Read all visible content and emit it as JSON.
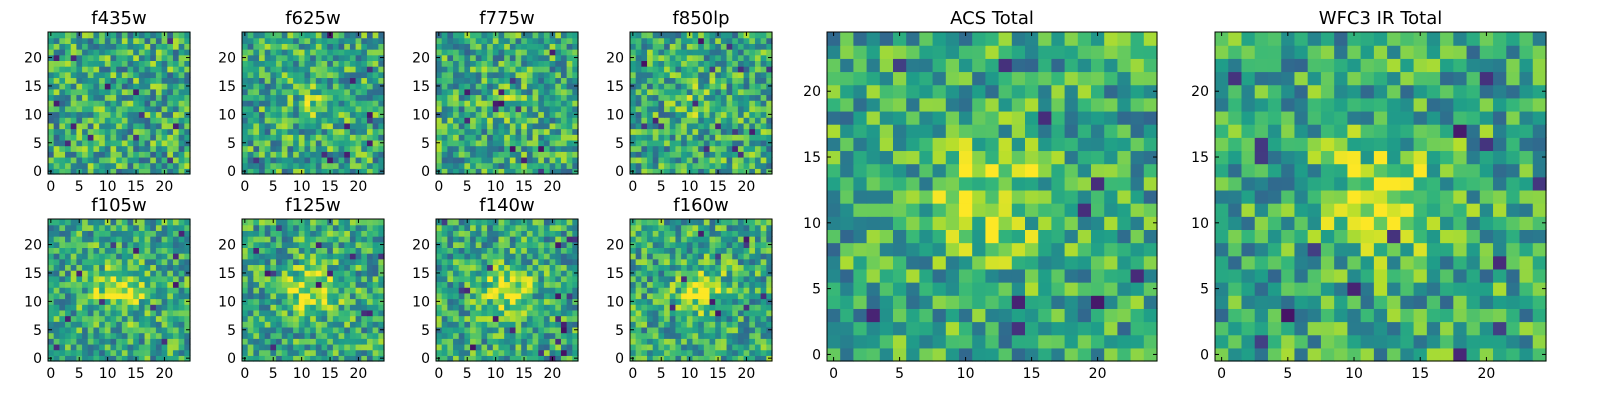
{
  "chart_data": [
    {
      "type": "heatmap",
      "title": "f435w",
      "colormap": "viridis",
      "grid_size": 25,
      "xlim": [
        -0.5,
        24.5
      ],
      "ylim": [
        -0.5,
        24.5
      ],
      "xticks": [
        0,
        5,
        10,
        15,
        20
      ],
      "yticks": [
        0,
        5,
        10,
        15,
        20
      ],
      "central_source": "none"
    },
    {
      "type": "heatmap",
      "title": "f625w",
      "colormap": "viridis",
      "grid_size": 25,
      "xlim": [
        -0.5,
        24.5
      ],
      "ylim": [
        -0.5,
        24.5
      ],
      "xticks": [
        0,
        5,
        10,
        15,
        20
      ],
      "yticks": [
        0,
        5,
        10,
        15,
        20
      ],
      "central_source": "faint"
    },
    {
      "type": "heatmap",
      "title": "f775w",
      "colormap": "viridis",
      "grid_size": 25,
      "xlim": [
        -0.5,
        24.5
      ],
      "ylim": [
        -0.5,
        24.5
      ],
      "xticks": [
        0,
        5,
        10,
        15,
        20
      ],
      "yticks": [
        0,
        5,
        10,
        15,
        20
      ],
      "central_source": "faint"
    },
    {
      "type": "heatmap",
      "title": "f850lp",
      "colormap": "viridis",
      "grid_size": 25,
      "xlim": [
        -0.5,
        24.5
      ],
      "ylim": [
        -0.5,
        24.5
      ],
      "xticks": [
        0,
        5,
        10,
        15,
        20
      ],
      "yticks": [
        0,
        5,
        10,
        15,
        20
      ],
      "central_source": "faint"
    },
    {
      "type": "heatmap",
      "title": "f105w",
      "colormap": "viridis",
      "grid_size": 25,
      "xlim": [
        -0.5,
        24.5
      ],
      "ylim": [
        -0.5,
        24.5
      ],
      "xticks": [
        0,
        5,
        10,
        15,
        20
      ],
      "yticks": [
        0,
        5,
        10,
        15,
        20
      ],
      "central_source": "bright"
    },
    {
      "type": "heatmap",
      "title": "f125w",
      "colormap": "viridis",
      "grid_size": 25,
      "xlim": [
        -0.5,
        24.5
      ],
      "ylim": [
        -0.5,
        24.5
      ],
      "xticks": [
        0,
        5,
        10,
        15,
        20
      ],
      "yticks": [
        0,
        5,
        10,
        15,
        20
      ],
      "central_source": "bright"
    },
    {
      "type": "heatmap",
      "title": "f140w",
      "colormap": "viridis",
      "grid_size": 25,
      "xlim": [
        -0.5,
        24.5
      ],
      "ylim": [
        -0.5,
        24.5
      ],
      "xticks": [
        0,
        5,
        10,
        15,
        20
      ],
      "yticks": [
        0,
        5,
        10,
        15,
        20
      ],
      "central_source": "bright"
    },
    {
      "type": "heatmap",
      "title": "f160w",
      "colormap": "viridis",
      "grid_size": 25,
      "xlim": [
        -0.5,
        24.5
      ],
      "ylim": [
        -0.5,
        24.5
      ],
      "xticks": [
        0,
        5,
        10,
        15,
        20
      ],
      "yticks": [
        0,
        5,
        10,
        15,
        20
      ],
      "central_source": "bright"
    },
    {
      "type": "heatmap",
      "title": "ACS Total",
      "colormap": "viridis",
      "grid_size": 25,
      "xlim": [
        -0.5,
        24.5
      ],
      "ylim": [
        -0.5,
        24.5
      ],
      "xticks": [
        0,
        5,
        10,
        15,
        20
      ],
      "yticks": [
        0,
        5,
        10,
        15,
        20
      ],
      "central_source": "bright"
    },
    {
      "type": "heatmap",
      "title": "WFC3 IR Total",
      "colormap": "viridis",
      "grid_size": 25,
      "xlim": [
        -0.5,
        24.5
      ],
      "ylim": [
        -0.5,
        24.5
      ],
      "xticks": [
        0,
        5,
        10,
        15,
        20
      ],
      "yticks": [
        0,
        5,
        10,
        15,
        20
      ],
      "central_source": "bright"
    }
  ]
}
